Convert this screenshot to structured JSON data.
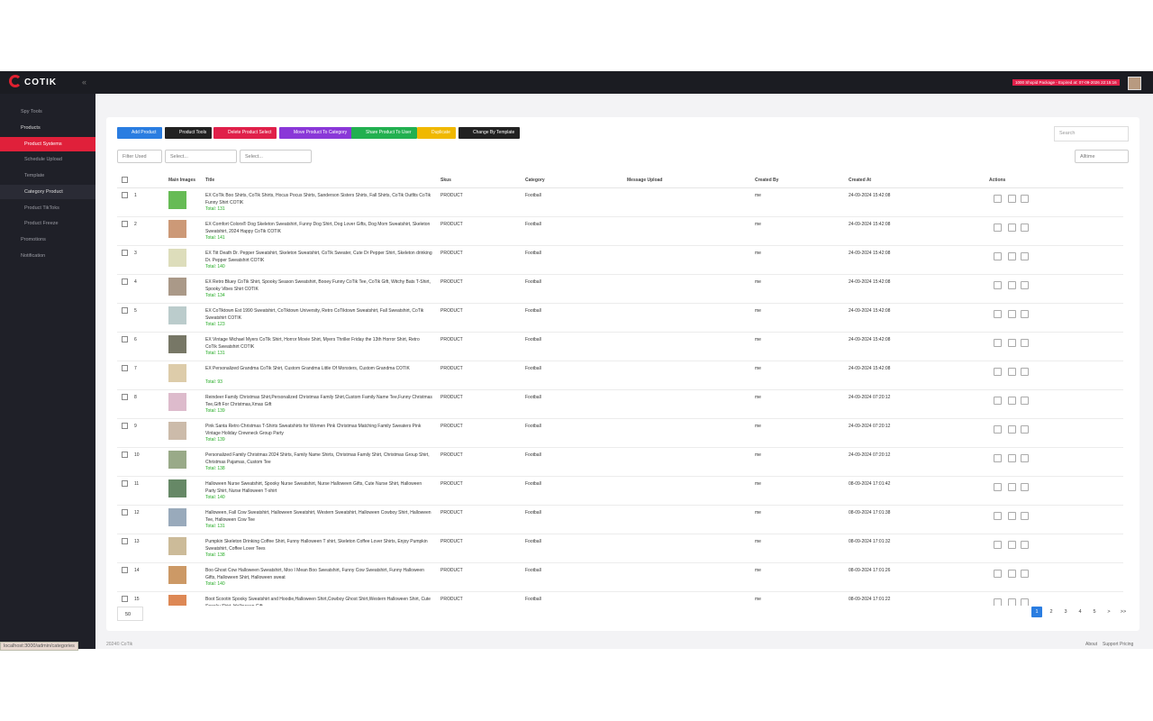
{
  "header": {
    "logo": "COTIK",
    "package_badge": "1000 Shopid Package - Expired at: 07-09-2026 22:15:16"
  },
  "sidebar": {
    "items": [
      "Spy Tools",
      "Products",
      "Product Systems",
      "Schedule Upload",
      "Template",
      "Category Product",
      "Product TikToks",
      "Product Freeze",
      "Promotions",
      "Notification"
    ]
  },
  "toolbar": {
    "buttons": [
      "Add Product",
      "Product Tools",
      "Delete Product Select",
      "Move Product To Category",
      "Share Product To User",
      "Duplicate",
      "Change By Template"
    ],
    "search_placeholder": "Search"
  },
  "filters": {
    "filter_used": "Filter Used",
    "select_1": "Select...",
    "select_2": "Select...",
    "time_range": "Alltime"
  },
  "table": {
    "columns": [
      "Main Images",
      "Title",
      "Skus",
      "Category",
      "Message Upload",
      "Created By",
      "Created At",
      "Actions"
    ],
    "rows": [
      {
        "no": "1",
        "title": "EX CoTik Boo Shirts, CoTik Shirts, Hocus Pocus Shirts, Sanderson Sisters Shirts, Fall Shirts, CoTik Outfits CoTik Funny Shirt COTIK",
        "total": "Total: 131",
        "sku": "PRODUCT",
        "category": "Football",
        "created_by": "me",
        "created_at": "24-09-2024 15:42:08"
      },
      {
        "no": "2",
        "title": "EX Comfort Colors® Dog Skeleton Sweatshirt, Funny Dog Shirt, Dog Lover Gifts, Dog Mom Sweatshirt, Skeleton Sweatshirt, 2024 Happy CoTik COTIK",
        "total": "Total: 141",
        "sku": "PRODUCT",
        "category": "Football",
        "created_by": "me",
        "created_at": "24-09-2024 15:42:08"
      },
      {
        "no": "3",
        "title": "EX Tiit Death Dr. Pepper Sweatshirt, Skeleton Sweatshirt, CoTik Sweater, Cute Dr Pepper Shirt, Skeleton drinking Dr. Pepper Sweatshirt COTIK",
        "total": "Total: 140",
        "sku": "PRODUCT",
        "category": "Football",
        "created_by": "me",
        "created_at": "24-09-2024 15:42:08"
      },
      {
        "no": "4",
        "title": "EX Retro Bluey CoTik Shirt, Spooky Season Sweatshirt, Booey Funny CoTik Tee, CoTik Gift, Witchy Bats T-Shirt, Spooky Vibes Shirt COTIK",
        "total": "Total: 134",
        "sku": "PRODUCT",
        "category": "Football",
        "created_by": "me",
        "created_at": "24-09-2024 15:42:08"
      },
      {
        "no": "5",
        "title": "EX CoTiktown Est 1990 Sweatshirt, CoTiktown University, Retro CoTiktown Sweatshirt, Fall Sweatshirt, CoTik Sweatshirt COTIK",
        "total": "Total: 123",
        "sku": "PRODUCT",
        "category": "Football",
        "created_by": "me",
        "created_at": "24-09-2024 15:42:08"
      },
      {
        "no": "6",
        "title": "EX Vintage Michael Myers CoTik Shirt, Horror Movie Shirt, Myers Thriller Friday the 13th Horror Shirt, Retro CoTik Sweatshirt COTIK",
        "total": "Total: 131",
        "sku": "PRODUCT",
        "category": "Football",
        "created_by": "me",
        "created_at": "24-09-2024 15:42:08"
      },
      {
        "no": "7",
        "title": "EX Personalized Grandma CoTik Shirt, Custom Grandma Little Of Monsters, Custom Grandma COTIK",
        "total": "Total: 93",
        "sku": "PRODUCT",
        "category": "Football",
        "created_by": "me",
        "created_at": "24-09-2024 15:42:08"
      },
      {
        "no": "8",
        "title": "Reindeer Family Christmas Shirt,Personalized Christmas Family Shirt,Custom Family Name Tee,Funny Christmas Tee,Gift For Christmas,Xmas Gift",
        "total": "Total: 139",
        "sku": "PRODUCT",
        "category": "Football",
        "created_by": "me",
        "created_at": "24-09-2024 07:20:12"
      },
      {
        "no": "9",
        "title": "Pink Santa Retro Christmas T-Shirts Sweatshirts for Women Pink Christmas Matching Family Sweaters Pink Vintage Holiday Crewneck Group Party",
        "total": "Total: 139",
        "sku": "PRODUCT",
        "category": "Football",
        "created_by": "me",
        "created_at": "24-09-2024 07:20:12"
      },
      {
        "no": "10",
        "title": "Personalized Family Christmas 2024 Shirts, Family Name Shirts, Christmas Family Shirt, Christmas Group Shirt, Christmas Pajamas, Custom Tee",
        "total": "Total: 138",
        "sku": "PRODUCT",
        "category": "Football",
        "created_by": "me",
        "created_at": "24-09-2024 07:20:12"
      },
      {
        "no": "11",
        "title": "Halloween Nurse Sweatshirt, Spooky Nurse Sweatshirt, Nurse Halloween Gifts, Cute Nurse Shirt, Halloween Party Shirt, Nurse Halloween T-shirt",
        "total": "Total: 140",
        "sku": "PRODUCT",
        "category": "Football",
        "created_by": "me",
        "created_at": "08-09-2024 17:01:42"
      },
      {
        "no": "12",
        "title": "Halloween, Fall Cow Sweatshirt, Halloween Sweatshirt, Western Sweatshirt, Halloween Cowboy Shirt, Halloween Tee, Halloween Cow Tee",
        "total": "Total: 131",
        "sku": "PRODUCT",
        "category": "Football",
        "created_by": "me",
        "created_at": "08-09-2024 17:01:38"
      },
      {
        "no": "13",
        "title": "Pumpkin Skeleton Drinking Coffee Shirt, Funny Halloween T shirt, Skeleton Coffee Lover Shirts, Enjoy Pumpkin Sweatshirt, Coffee Lover Tees",
        "total": "Total: 138",
        "sku": "PRODUCT",
        "category": "Football",
        "created_by": "me",
        "created_at": "08-09-2024 17:01:32"
      },
      {
        "no": "14",
        "title": "Boo Ghost Cow Halloween Sweatshirt, Moo I Mean Boo Sweatshirt, Funny Cow Sweatshirt, Funny Halloween Gifts, Halloween Shirt, Halloween sweat",
        "total": "Total: 140",
        "sku": "PRODUCT",
        "category": "Football",
        "created_by": "me",
        "created_at": "08-09-2024 17:01:26"
      },
      {
        "no": "15",
        "title": "Boot Scootin Spooky Sweatshirt and Hoodie,Halloween Shirt,Cowboy Ghost Shirt,Western Halloween Shirt, Cute Spooky Shirt, Halloween Gift",
        "sku": "PRODUCT",
        "category": "Football",
        "created_by": "me",
        "created_at": "08-09-2024 17:01:22"
      }
    ]
  },
  "pagination": {
    "page_size": "50",
    "pages": [
      "1",
      "2",
      "3",
      "4",
      "5",
      ">",
      ">>"
    ]
  },
  "footer": {
    "copyright": "2024© CoTik",
    "links": [
      "About",
      "Support",
      "Pricing"
    ]
  },
  "status_bar": "localhost:3000/admin/categories"
}
